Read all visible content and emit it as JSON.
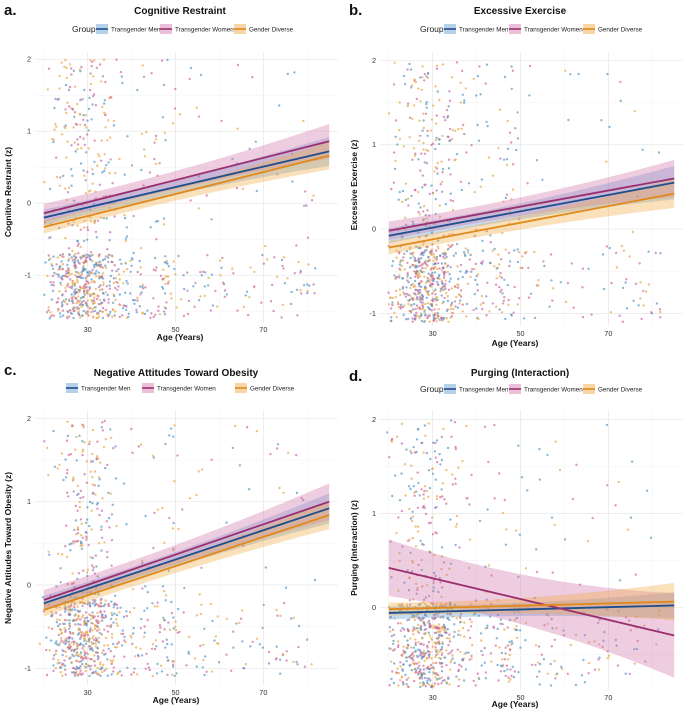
{
  "chart_data": [
    {
      "type": "scatter",
      "letter": "a.",
      "title": "Cognitive Restraint",
      "xlabel": "Age (Years)",
      "ylabel": "Cognitive Restraint (z)",
      "xlim": [
        18,
        87
      ],
      "ylim": [
        -1.65,
        2.1
      ],
      "xticks": [
        30,
        50,
        70
      ],
      "yticks": [
        -1,
        0,
        1,
        2
      ],
      "legend": {
        "title": "Group",
        "position": "top"
      },
      "point_profile": {
        "y_mean": -0.15,
        "y_sd": 1.05,
        "y_min": -1.6,
        "y_max": 2.0,
        "seed": 11
      },
      "series": [
        {
          "name": "Transgender Men",
          "color": "#1f4e8c",
          "point_color": "#4a90c4",
          "band_color": "#5b9bd5",
          "x": [
            20,
            85
          ],
          "y": [
            -0.2,
            0.72
          ],
          "band": [
            0.11,
            0.2
          ]
        },
        {
          "name": "Transgender Women",
          "color": "#9b2f6e",
          "point_color": "#c9609a",
          "band_color": "#d170a8",
          "x": [
            20,
            85
          ],
          "y": [
            -0.14,
            0.86
          ],
          "band": [
            0.13,
            0.24
          ]
        },
        {
          "name": "Gender Diverse",
          "color": "#e08a1c",
          "point_color": "#e8a13a",
          "band_color": "#f2a93b",
          "x": [
            20,
            85
          ],
          "y": [
            -0.33,
            0.66
          ],
          "band": [
            0.09,
            0.19
          ]
        }
      ]
    },
    {
      "type": "scatter",
      "letter": "b.",
      "title": "Excessive Exercise",
      "xlabel": "Age (Years)",
      "ylabel": "Excessive Exercise (z)",
      "xlim": [
        18,
        87
      ],
      "ylim": [
        -1.15,
        2.1
      ],
      "xticks": [
        30,
        50,
        70
      ],
      "yticks": [
        -1,
        0,
        1,
        2
      ],
      "legend": {
        "title": "Group",
        "position": "top"
      },
      "point_profile": {
        "y_mean": -0.35,
        "y_sd": 0.8,
        "y_min": -1.1,
        "y_max": 2.0,
        "seed": 23
      },
      "series": [
        {
          "name": "Transgender Men",
          "color": "#1f4e8c",
          "point_color": "#4a90c4",
          "band_color": "#5b9bd5",
          "x": [
            20,
            85
          ],
          "y": [
            -0.08,
            0.55
          ],
          "band": [
            0.09,
            0.2
          ]
        },
        {
          "name": "Transgender Women",
          "color": "#9b2f6e",
          "point_color": "#c9609a",
          "band_color": "#d170a8",
          "x": [
            20,
            85
          ],
          "y": [
            -0.02,
            0.6
          ],
          "band": [
            0.11,
            0.22
          ]
        },
        {
          "name": "Gender Diverse",
          "color": "#e08a1c",
          "point_color": "#e8a13a",
          "band_color": "#f2a93b",
          "x": [
            20,
            85
          ],
          "y": [
            -0.22,
            0.42
          ],
          "band": [
            0.08,
            0.17
          ]
        }
      ]
    },
    {
      "type": "scatter",
      "letter": "c.",
      "title": "Negative Attitudes Toward Obesity",
      "xlabel": "Age (Years)",
      "ylabel": "Negative Attitudes Toward Obesity (z)",
      "xlim": [
        18,
        87
      ],
      "ylim": [
        -1.2,
        2.1
      ],
      "xticks": [
        30,
        50,
        70
      ],
      "yticks": [
        -1,
        0,
        1,
        2
      ],
      "legend": {
        "title": "",
        "position": "top"
      },
      "point_profile": {
        "y_mean": -0.35,
        "y_sd": 0.8,
        "y_min": -1.1,
        "y_max": 2.0,
        "seed": 37
      },
      "series": [
        {
          "name": "Transgender Men",
          "color": "#1f4e8c",
          "point_color": "#4a90c4",
          "band_color": "#5b9bd5",
          "x": [
            20,
            85
          ],
          "y": [
            -0.22,
            0.92
          ],
          "band": [
            0.09,
            0.18
          ]
        },
        {
          "name": "Transgender Women",
          "color": "#9b2f6e",
          "point_color": "#c9609a",
          "band_color": "#d170a8",
          "x": [
            20,
            85
          ],
          "y": [
            -0.18,
            1.0
          ],
          "band": [
            0.12,
            0.22
          ]
        },
        {
          "name": "Gender Diverse",
          "color": "#e08a1c",
          "point_color": "#e8a13a",
          "band_color": "#f2a93b",
          "x": [
            20,
            85
          ],
          "y": [
            -0.3,
            0.84
          ],
          "band": [
            0.08,
            0.17
          ]
        }
      ]
    },
    {
      "type": "scatter",
      "letter": "d.",
      "title": "Purging (Interaction)",
      "xlabel": "Age (Years)",
      "ylabel": "Purging (Interaction) (z)",
      "xlim": [
        18,
        87
      ],
      "ylim": [
        -0.88,
        2.1
      ],
      "xticks": [
        30,
        50,
        70
      ],
      "yticks": [
        0,
        1,
        2
      ],
      "legend": {
        "title": "Group",
        "position": "top"
      },
      "point_profile": {
        "y_mean": -0.35,
        "y_sd": 0.7,
        "y_min": -0.85,
        "y_max": 2.0,
        "seed": 53
      },
      "series": [
        {
          "name": "Transgender Men",
          "color": "#1f4e8c",
          "point_color": "#4a90c4",
          "band_color": "#5b9bd5",
          "x": [
            20,
            85
          ],
          "y": [
            -0.06,
            0.02
          ],
          "band": [
            0.07,
            0.14
          ]
        },
        {
          "name": "Transgender Women",
          "color": "#9b2f6e",
          "point_color": "#c9609a",
          "band_color": "#d170a8",
          "x": [
            20,
            85
          ],
          "y": [
            0.42,
            -0.3
          ],
          "band": [
            0.3,
            0.45
          ]
        },
        {
          "name": "Gender Diverse",
          "color": "#e08a1c",
          "point_color": "#e8a13a",
          "band_color": "#f2a93b",
          "x": [
            20,
            85
          ],
          "y": [
            -0.02,
            0.06
          ],
          "band": [
            0.07,
            0.2
          ]
        }
      ]
    }
  ]
}
